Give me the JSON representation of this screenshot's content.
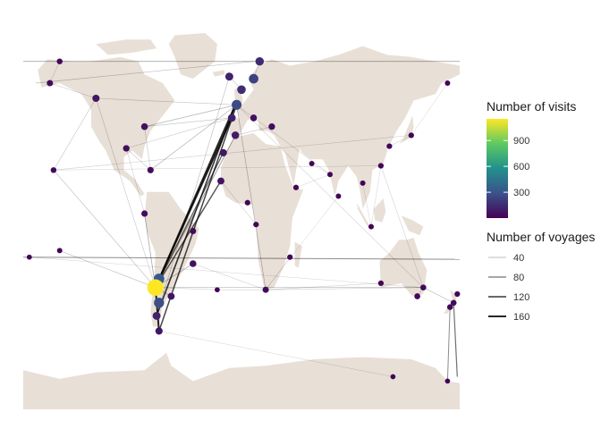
{
  "chart_data": {
    "type": "map-network",
    "projection": "equirectangular",
    "colors": {
      "land": "#e8dfd6",
      "ocean": "#ffffff",
      "route": "#000000",
      "viridis": [
        "#440154",
        "#3b528b",
        "#21918c",
        "#5ec962",
        "#fde725"
      ]
    },
    "legend_visits": {
      "title": "Number of visits",
      "ticks": [
        {
          "label": "900",
          "value": 900
        },
        {
          "label": "600",
          "value": 600
        },
        {
          "label": "300",
          "value": 300
        }
      ],
      "range": [
        1,
        1150
      ]
    },
    "legend_voyages": {
      "title": "Number of voyages",
      "entries": [
        {
          "label": "40",
          "value": 40
        },
        {
          "label": "80",
          "value": 80
        },
        {
          "label": "120",
          "value": 120
        },
        {
          "label": "160",
          "value": 160
        }
      ]
    },
    "ports": [
      {
        "lon": -71,
        "lat": -34,
        "visits": 1150
      },
      {
        "lon": -68,
        "lat": -30,
        "visits": 320
      },
      {
        "lon": -68,
        "lat": -41,
        "visits": 280
      },
      {
        "lon": -70,
        "lat": -47,
        "visits": 120
      },
      {
        "lon": -68,
        "lat": -54,
        "visits": 80
      },
      {
        "lon": -4,
        "lat": 50,
        "visits": 260
      },
      {
        "lon": 10,
        "lat": 62,
        "visits": 230
      },
      {
        "lon": 15,
        "lat": 70,
        "visits": 150
      },
      {
        "lon": 0,
        "lat": 57,
        "visits": 160
      },
      {
        "lon": -10,
        "lat": 63,
        "visits": 120
      },
      {
        "lon": -8,
        "lat": 44,
        "visits": 110
      },
      {
        "lon": -5,
        "lat": 36,
        "visits": 100
      },
      {
        "lon": -15,
        "lat": 28,
        "visits": 80
      },
      {
        "lon": -17,
        "lat": 15,
        "visits": 70
      },
      {
        "lon": 10,
        "lat": 44,
        "visits": 60
      },
      {
        "lon": 25,
        "lat": 40,
        "visits": 50
      },
      {
        "lon": -120,
        "lat": 53,
        "visits": 80
      },
      {
        "lon": -158,
        "lat": 60,
        "visits": 40
      },
      {
        "lon": -150,
        "lat": 70,
        "visits": 25
      },
      {
        "lon": -95,
        "lat": 30,
        "visits": 50
      },
      {
        "lon": -80,
        "lat": 40,
        "visits": 60
      },
      {
        "lon": -75,
        "lat": 20,
        "visits": 45
      },
      {
        "lon": -80,
        "lat": 0,
        "visits": 45
      },
      {
        "lon": -40,
        "lat": -23,
        "visits": 60
      },
      {
        "lon": -40,
        "lat": -8,
        "visits": 40
      },
      {
        "lon": -58,
        "lat": -38,
        "visits": 70
      },
      {
        "lon": 20,
        "lat": -35,
        "visits": 40
      },
      {
        "lon": 12,
        "lat": -5,
        "visits": 20
      },
      {
        "lon": 5,
        "lat": 5,
        "visits": 20
      },
      {
        "lon": 40,
        "lat": -20,
        "visits": 20
      },
      {
        "lon": 45,
        "lat": 12,
        "visits": 20
      },
      {
        "lon": 58,
        "lat": 23,
        "visits": 15
      },
      {
        "lon": 73,
        "lat": 18,
        "visits": 15
      },
      {
        "lon": 80,
        "lat": 8,
        "visits": 15
      },
      {
        "lon": 100,
        "lat": 14,
        "visits": 15
      },
      {
        "lon": 115,
        "lat": 22,
        "visits": 20
      },
      {
        "lon": 122,
        "lat": 31,
        "visits": 20
      },
      {
        "lon": 140,
        "lat": 36,
        "visits": 20
      },
      {
        "lon": 107,
        "lat": -6,
        "visits": 15
      },
      {
        "lon": 150,
        "lat": -34,
        "visits": 30
      },
      {
        "lon": 145,
        "lat": -38,
        "visits": 30
      },
      {
        "lon": 115,
        "lat": -32,
        "visits": 20
      },
      {
        "lon": 175,
        "lat": -41,
        "visits": 30
      },
      {
        "lon": 172,
        "lat": -43,
        "visits": 25
      },
      {
        "lon": 178,
        "lat": -37,
        "visits": 20
      },
      {
        "lon": -155,
        "lat": 20,
        "visits": 25
      },
      {
        "lon": -150,
        "lat": -17,
        "visits": 15
      },
      {
        "lon": -175,
        "lat": -20,
        "visits": 10
      },
      {
        "lon": 170,
        "lat": 60,
        "visits": 15
      },
      {
        "lon": -20,
        "lat": -35,
        "visits": 10
      },
      {
        "lon": 125,
        "lat": -75,
        "visits": 10
      },
      {
        "lon": 170,
        "lat": -77,
        "visits": 10
      }
    ],
    "routes": [
      {
        "from": [
          -71,
          -34
        ],
        "to": [
          -5,
          50
        ],
        "voyages": 170
      },
      {
        "from": [
          -71,
          -34
        ],
        "to": [
          -8,
          44
        ],
        "voyages": 150
      },
      {
        "from": [
          -71,
          -34
        ],
        "to": [
          -68,
          -54
        ],
        "voyages": 160
      },
      {
        "from": [
          -71,
          -34
        ],
        "to": [
          -68,
          -30
        ],
        "voyages": 130
      },
      {
        "from": [
          -70,
          -47
        ],
        "to": [
          -5,
          50
        ],
        "voyages": 120
      },
      {
        "from": [
          -68,
          -54
        ],
        "to": [
          -4,
          50
        ],
        "voyages": 110
      },
      {
        "from": [
          -71,
          -34
        ],
        "to": [
          -17,
          15
        ],
        "voyages": 100
      },
      {
        "from": [
          -71,
          -34
        ],
        "to": [
          -15,
          28
        ],
        "voyages": 90
      },
      {
        "from": [
          -180,
          -20
        ],
        "to": [
          180,
          -21
        ],
        "voyages": 60
      },
      {
        "from": [
          -180,
          70
        ],
        "to": [
          180,
          70
        ],
        "voyages": 40
      },
      {
        "from": [
          -170,
          60
        ],
        "to": [
          10,
          70
        ],
        "voyages": 25
      },
      {
        "from": [
          -155,
          20
        ],
        "to": [
          -120,
          53
        ],
        "voyages": 20
      },
      {
        "from": [
          175,
          -41
        ],
        "to": [
          178,
          -75
        ],
        "voyages": 80
      },
      {
        "from": [
          172,
          -43
        ],
        "to": [
          170,
          -77
        ],
        "voyages": 60
      },
      {
        "from": [
          -71,
          -34
        ],
        "to": [
          150,
          -34
        ],
        "voyages": 30
      },
      {
        "from": [
          -71,
          -34
        ],
        "to": [
          -150,
          -17
        ],
        "voyages": 25
      },
      {
        "from": [
          -71,
          -34
        ],
        "to": [
          -155,
          20
        ],
        "voyages": 25
      },
      {
        "from": [
          -71,
          -34
        ],
        "to": [
          -120,
          53
        ],
        "voyages": 20
      },
      {
        "from": [
          -71,
          -34
        ],
        "to": [
          -80,
          0
        ],
        "voyages": 40
      },
      {
        "from": [
          -71,
          -34
        ],
        "to": [
          -58,
          -38
        ],
        "voyages": 40
      },
      {
        "from": [
          -71,
          -34
        ],
        "to": [
          -40,
          -23
        ],
        "voyages": 35
      },
      {
        "from": [
          -4,
          50
        ],
        "to": [
          -80,
          40
        ],
        "voyages": 35
      },
      {
        "from": [
          -4,
          50
        ],
        "to": [
          -75,
          20
        ],
        "voyages": 30
      },
      {
        "from": [
          -4,
          50
        ],
        "to": [
          -120,
          53
        ],
        "voyages": 20
      },
      {
        "from": [
          -4,
          50
        ],
        "to": [
          20,
          -35
        ],
        "voyages": 30
      },
      {
        "from": [
          -4,
          50
        ],
        "to": [
          73,
          18
        ],
        "voyages": 15
      },
      {
        "from": [
          -4,
          50
        ],
        "to": [
          150,
          -34
        ],
        "voyages": 15
      },
      {
        "from": [
          20,
          -35
        ],
        "to": [
          150,
          -34
        ],
        "voyages": 20
      },
      {
        "from": [
          20,
          -35
        ],
        "to": [
          115,
          -32
        ],
        "voyages": 15
      },
      {
        "from": [
          20,
          -35
        ],
        "to": [
          80,
          8
        ],
        "voyages": 10
      },
      {
        "from": [
          -40,
          -23
        ],
        "to": [
          20,
          -35
        ],
        "voyages": 15
      },
      {
        "from": [
          -17,
          15
        ],
        "to": [
          12,
          -5
        ],
        "voyages": 15
      },
      {
        "from": [
          -5,
          36
        ],
        "to": [
          25,
          40
        ],
        "voyages": 20
      },
      {
        "from": [
          -8,
          44
        ],
        "to": [
          -80,
          40
        ],
        "voyages": 25
      },
      {
        "from": [
          -8,
          44
        ],
        "to": [
          -95,
          30
        ],
        "voyages": 20
      },
      {
        "from": [
          0,
          57
        ],
        "to": [
          -10,
          63
        ],
        "voyages": 20
      },
      {
        "from": [
          10,
          62
        ],
        "to": [
          15,
          70
        ],
        "voyages": 20
      },
      {
        "from": [
          -95,
          30
        ],
        "to": [
          -75,
          20
        ],
        "voyages": 20
      },
      {
        "from": [
          -80,
          40
        ],
        "to": [
          -75,
          20
        ],
        "voyages": 20
      },
      {
        "from": [
          -120,
          53
        ],
        "to": [
          -158,
          60
        ],
        "voyages": 20
      },
      {
        "from": [
          -158,
          60
        ],
        "to": [
          -150,
          70
        ],
        "voyages": 15
      },
      {
        "from": [
          -80,
          0
        ],
        "to": [
          -95,
          30
        ],
        "voyages": 15
      },
      {
        "from": [
          115,
          22
        ],
        "to": [
          150,
          -34
        ],
        "voyages": 15
      },
      {
        "from": [
          122,
          31
        ],
        "to": [
          140,
          36
        ],
        "voyages": 15
      },
      {
        "from": [
          107,
          -6
        ],
        "to": [
          115,
          22
        ],
        "voyages": 10
      },
      {
        "from": [
          100,
          14
        ],
        "to": [
          107,
          -6
        ],
        "voyages": 10
      },
      {
        "from": [
          150,
          -34
        ],
        "to": [
          175,
          -41
        ],
        "voyages": 25
      },
      {
        "from": [
          145,
          -38
        ],
        "to": [
          150,
          -34
        ],
        "voyages": 20
      },
      {
        "from": [
          -155,
          20
        ],
        "to": [
          140,
          36
        ],
        "voyages": 15
      },
      {
        "from": [
          -155,
          20
        ],
        "to": [
          115,
          22
        ],
        "voyages": 10
      },
      {
        "from": [
          -175,
          -20
        ],
        "to": [
          150,
          -34
        ],
        "voyages": 10
      },
      {
        "from": [
          170,
          60
        ],
        "to": [
          140,
          36
        ],
        "voyages": 10
      },
      {
        "from": [
          -71,
          -34
        ],
        "to": [
          -20,
          -35
        ],
        "voyages": 15
      },
      {
        "from": [
          -20,
          -35
        ],
        "to": [
          20,
          -35
        ],
        "voyages": 15
      },
      {
        "from": [
          45,
          12
        ],
        "to": [
          73,
          18
        ],
        "voyages": 10
      },
      {
        "from": [
          40,
          -20
        ],
        "to": [
          20,
          -35
        ],
        "voyages": 10
      },
      {
        "from": [
          58,
          23
        ],
        "to": [
          73,
          18
        ],
        "voyages": 10
      },
      {
        "from": [
          -68,
          -54
        ],
        "to": [
          125,
          -75
        ],
        "voyages": 10
      },
      {
        "from": [
          -71,
          -34
        ],
        "to": [
          -5,
          36
        ],
        "voyages": 50
      },
      {
        "from": [
          -70,
          -47
        ],
        "to": [
          -10,
          63
        ],
        "voyages": 25
      }
    ]
  }
}
